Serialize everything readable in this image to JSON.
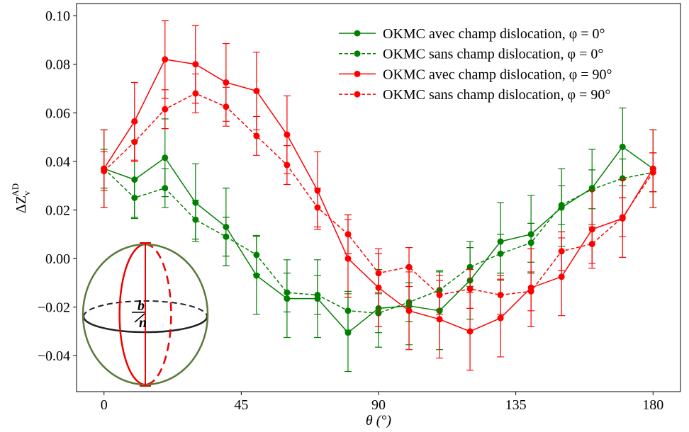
{
  "chart_data": {
    "type": "line",
    "x_label": "θ (°)",
    "y_label": {
      "base": "ΔZ",
      "sub": "v",
      "sup": "AD"
    },
    "x": [
      0,
      10,
      20,
      30,
      40,
      50,
      60,
      70,
      80,
      90,
      100,
      110,
      120,
      130,
      140,
      150,
      160,
      170,
      180
    ],
    "xlim": [
      -9,
      189
    ],
    "ylim": [
      -0.0548,
      0.105
    ],
    "xticks": [
      0,
      45,
      90,
      135,
      180
    ],
    "yticks": [
      {
        "value": -0.04,
        "label": "−0.04"
      },
      {
        "value": -0.02,
        "label": "−0.02"
      },
      {
        "value": 0,
        "label": "0.00"
      },
      {
        "value": 0.02,
        "label": "0.02"
      },
      {
        "value": 0.04,
        "label": "0.04"
      },
      {
        "value": 0.06,
        "label": "0.06"
      },
      {
        "value": 0.08,
        "label": "0.08"
      },
      {
        "value": 0.1,
        "label": "0.10"
      }
    ],
    "legend": "upper right",
    "series": [
      {
        "name": "OKMC avec champ dislocation, φ = 0°",
        "color": "#008000",
        "dashed": false,
        "values": [
          0.037,
          0.0325,
          0.0415,
          0.023,
          0.013,
          -0.007,
          -0.0165,
          -0.0165,
          -0.0305,
          -0.0205,
          -0.0195,
          -0.0215,
          -0.009,
          0.007,
          0.01,
          0.021,
          0.029,
          0.046,
          0.037
        ],
        "errors": [
          0.016,
          0.016,
          0.016,
          0.016,
          0.016,
          0.016,
          0.016,
          0.016,
          0.016,
          0.016,
          0.016,
          0.016,
          0.016,
          0.016,
          0.016,
          0.016,
          0.016,
          0.016,
          0.016
        ]
      },
      {
        "name": "OKMC sans champ dislocation, φ = 0°",
        "color": "#008000",
        "dashed": true,
        "values": [
          0.037,
          0.025,
          0.029,
          0.016,
          0.009,
          0.0015,
          -0.014,
          -0.015,
          -0.0215,
          -0.0225,
          -0.018,
          -0.013,
          -0.0035,
          0.002,
          0.0065,
          0.022,
          0.0285,
          0.033,
          0.0355
        ],
        "errors": [
          0.008,
          0.008,
          0.008,
          0.008,
          0.008,
          0.008,
          0.008,
          0.008,
          0.008,
          0.008,
          0.008,
          0.008,
          0.008,
          0.008,
          0.008,
          0.008,
          0.008,
          0.008,
          0.008
        ]
      },
      {
        "name": "OKMC avec champ dislocation, φ = 90°",
        "color": "#ff0000",
        "dashed": false,
        "values": [
          0.037,
          0.0565,
          0.082,
          0.08,
          0.0725,
          0.069,
          0.051,
          0.028,
          0.0,
          -0.012,
          -0.0215,
          -0.025,
          -0.03,
          -0.0245,
          -0.012,
          -0.0075,
          0.012,
          0.0165,
          0.037
        ],
        "errors": [
          0.016,
          0.016,
          0.016,
          0.016,
          0.016,
          0.016,
          0.016,
          0.016,
          0.016,
          0.016,
          0.016,
          0.016,
          0.016,
          0.016,
          0.016,
          0.016,
          0.016,
          0.016,
          0.016
        ]
      },
      {
        "name": "OKMC sans champ dislocation, φ = 90°",
        "color": "#ff0000",
        "dashed": true,
        "values": [
          0.036,
          0.048,
          0.0615,
          0.068,
          0.0625,
          0.0505,
          0.0385,
          0.021,
          0.01,
          -0.006,
          -0.0035,
          -0.015,
          -0.0125,
          -0.015,
          -0.0135,
          0.003,
          0.006,
          0.017,
          0.0355
        ],
        "errors": [
          0.008,
          0.008,
          0.008,
          0.008,
          0.008,
          0.008,
          0.008,
          0.008,
          0.008,
          0.008,
          0.008,
          0.008,
          0.008,
          0.008,
          0.008,
          0.008,
          0.008,
          0.008,
          0.008
        ]
      }
    ],
    "inset_labels": [
      "b",
      "n"
    ]
  }
}
